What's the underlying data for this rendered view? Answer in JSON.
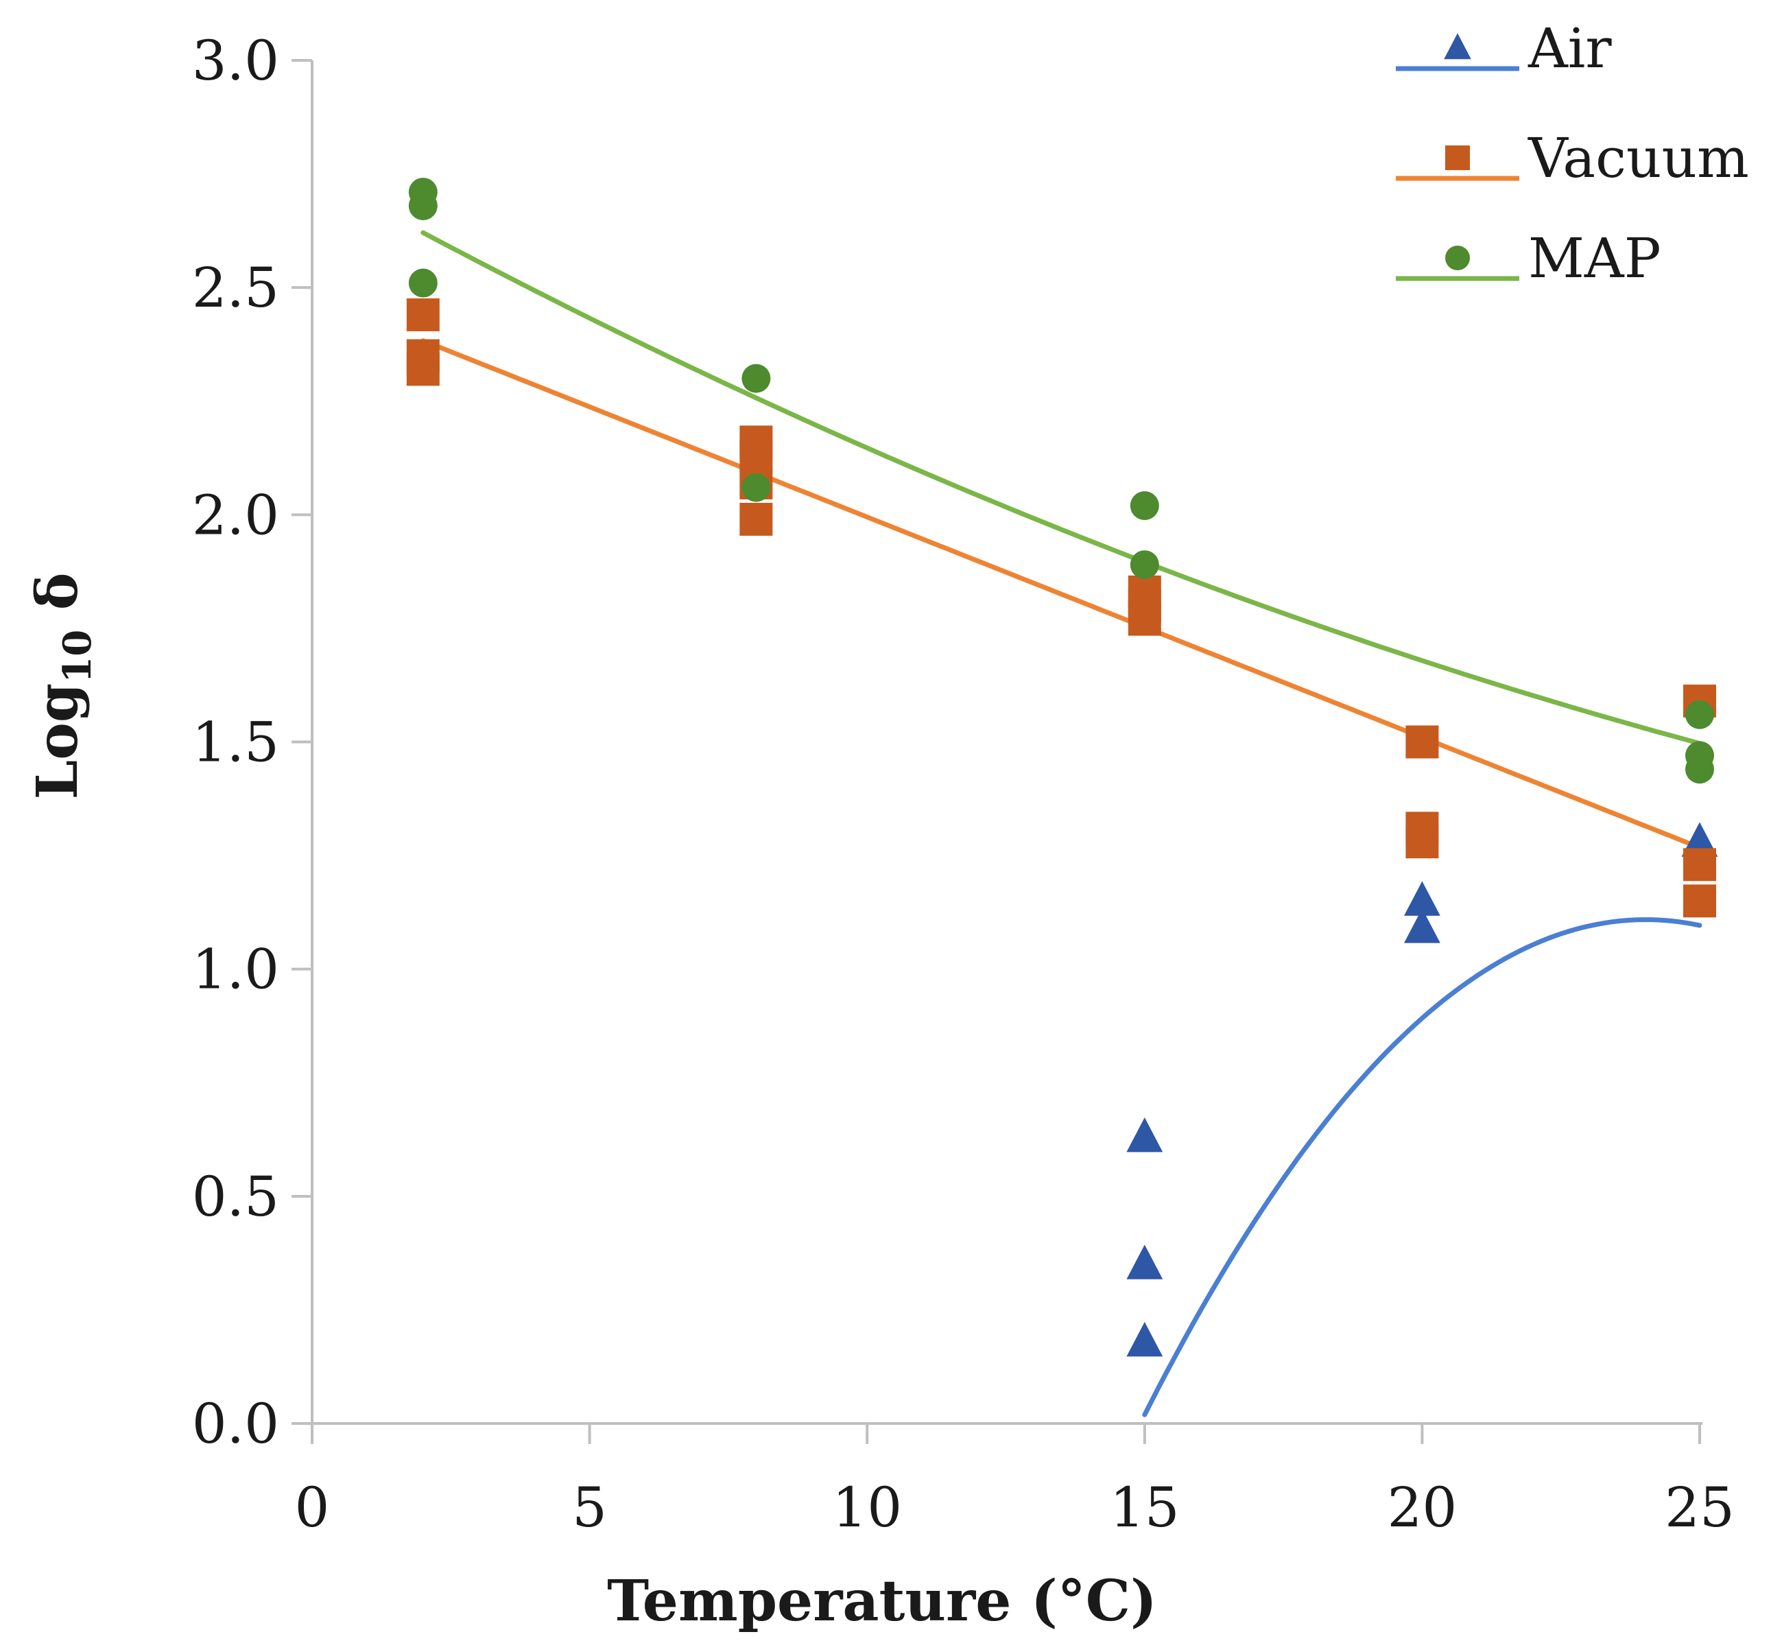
{
  "chart_data": {
    "type": "scatter",
    "title": "",
    "xlabel": "Temperature (°C)",
    "ylabel_main": "Log",
    "ylabel_sub": "10",
    "ylabel_symbol": " δ",
    "xlim": [
      0,
      25
    ],
    "ylim": [
      0,
      3
    ],
    "xticks": [
      0,
      5,
      10,
      15,
      20,
      25
    ],
    "xtick_labels": [
      "0",
      "5",
      "10",
      "15",
      "20",
      "25"
    ],
    "yticks": [
      0,
      0.5,
      1.0,
      1.5,
      2.0,
      2.5,
      3.0
    ],
    "ytick_labels": [
      "0.0",
      "0.5",
      "1.0",
      "1.5",
      "2.0",
      "2.5",
      "3.0"
    ],
    "grid": false,
    "legend_position": "top-right",
    "series": [
      {
        "name": "Air",
        "marker": "triangle",
        "color": "#2e57a6",
        "line_color": "#4a7fd4",
        "points": [
          [
            15,
            0.63
          ],
          [
            15,
            0.35
          ],
          [
            15,
            0.18
          ],
          [
            20,
            1.15
          ],
          [
            20,
            1.09
          ],
          [
            25,
            1.28
          ]
        ],
        "trendline": {
          "type": "polynomial",
          "coefficients": [
            -6.61,
            0.6425,
            -0.01337
          ],
          "range": [
            15,
            25
          ]
        }
      },
      {
        "name": "Vacuum",
        "marker": "square",
        "color": "#c65a1e",
        "line_color": "#ee8433",
        "points": [
          [
            2,
            2.44
          ],
          [
            2,
            2.35
          ],
          [
            2,
            2.32
          ],
          [
            8,
            2.16
          ],
          [
            8,
            2.13
          ],
          [
            8,
            2.07
          ],
          [
            8,
            1.99
          ],
          [
            15,
            1.83
          ],
          [
            15,
            1.8
          ],
          [
            15,
            1.77
          ],
          [
            20,
            1.5
          ],
          [
            20,
            1.31
          ],
          [
            20,
            1.28
          ],
          [
            25,
            1.59
          ],
          [
            25,
            1.23
          ],
          [
            25,
            1.15
          ]
        ],
        "trendline": {
          "type": "linear",
          "coefficients": [
            2.48,
            -0.0485
          ],
          "range": [
            2,
            25
          ]
        }
      },
      {
        "name": "MAP",
        "marker": "circle",
        "color": "#4e8a2e",
        "line_color": "#7ab648",
        "points": [
          [
            2,
            2.71
          ],
          [
            2,
            2.68
          ],
          [
            2,
            2.51
          ],
          [
            8,
            2.3
          ],
          [
            8,
            2.06
          ],
          [
            15,
            2.02
          ],
          [
            15,
            1.89
          ],
          [
            25,
            1.56
          ],
          [
            25,
            1.47
          ],
          [
            25,
            1.44
          ]
        ],
        "trendline": {
          "type": "polynomial",
          "coefficients": [
            2.753,
            -0.0675,
            0.00069
          ],
          "range": [
            2,
            25
          ]
        }
      }
    ]
  }
}
